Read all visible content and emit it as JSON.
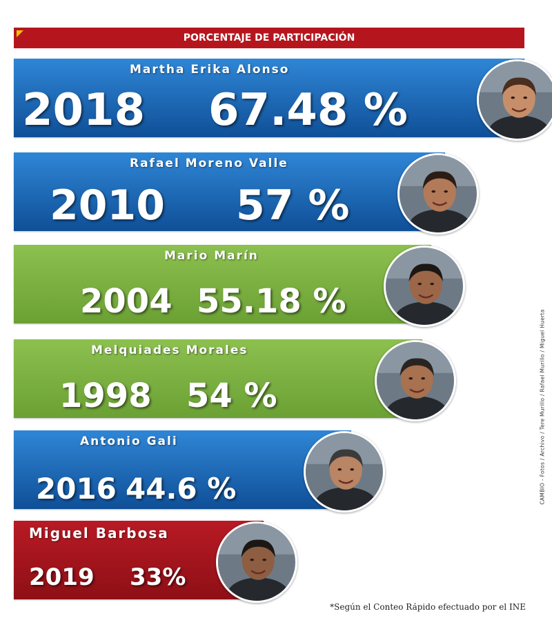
{
  "header": {
    "title": "PORCENTAJE DE PARTICIPACIÓN"
  },
  "colors": {
    "header": "#b5161e",
    "blue": "#1565b5",
    "green": "#7ab040",
    "red": "#a8121c",
    "accent": "#f5c400"
  },
  "chart_data": {
    "type": "bar",
    "orientation": "horizontal",
    "title": "PORCENTAJE DE PARTICIPACIÓN",
    "unit": "%",
    "categories": [
      "Martha Erika Alonso",
      "Rafael Moreno Valle",
      "Mario Marín",
      "Melquiades Morales",
      "Antonio Gali",
      "Miguel Barbosa"
    ],
    "years": [
      "2018",
      "2010",
      "2004",
      "1998",
      "2016",
      "2019"
    ],
    "values": [
      67.48,
      57,
      55.18,
      54,
      44.6,
      33
    ],
    "value_labels": [
      "67.48 %",
      "57 %",
      "55.18 %",
      "54 %",
      "44.6 %",
      "33%"
    ],
    "bar_colors": [
      "blue",
      "blue",
      "green",
      "green",
      "blue",
      "red"
    ],
    "photo_icons": [
      "portrait-icon",
      "portrait-icon",
      "portrait-icon",
      "portrait-icon",
      "portrait-icon",
      "portrait-icon"
    ]
  },
  "credit": "CAMBIO - Fotos / Archivo / Tere Murillo / Rafael Murillo / Miguel Huerta",
  "footnote": "*Según el Conteo Rápido efectuado por el INE"
}
